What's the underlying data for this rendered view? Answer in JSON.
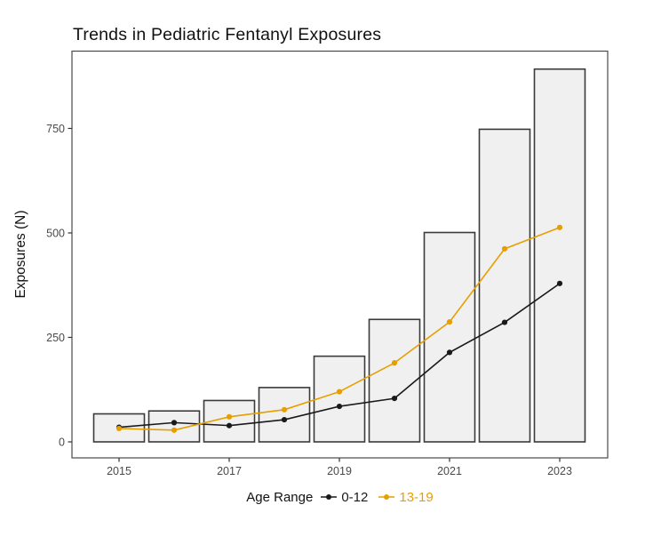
{
  "figure": {
    "title": "Trends in Pediatric Fentanyl Exposures",
    "y_axis_label": "Exposures (N)"
  },
  "legend": {
    "title": "Age Range",
    "entries": [
      {
        "label": "0-12",
        "color": "#1A1A1A"
      },
      {
        "label": "13-19",
        "color": "#E69F00"
      }
    ]
  },
  "chart_data": {
    "type": "bar",
    "subtype": "bars-with-line-overlay",
    "title": "Trends in Pediatric Fentanyl Exposures",
    "xlabel": "",
    "ylabel": "Exposures (N)",
    "categories": [
      2015,
      2016,
      2017,
      2018,
      2019,
      2020,
      2021,
      2022,
      2023
    ],
    "bars": {
      "values": [
        67,
        74,
        99,
        130,
        205,
        293,
        501,
        748,
        892
      ],
      "fill": "#F0F0F0",
      "stroke": "#3A3A3A"
    },
    "series": [
      {
        "name": "0-12",
        "color": "#1A1A1A",
        "values": [
          35,
          46,
          39,
          53,
          85,
          104,
          214,
          286,
          379
        ]
      },
      {
        "name": "13-19",
        "color": "#E69F00",
        "values": [
          32,
          28,
          60,
          77,
          120,
          189,
          287,
          462,
          513
        ]
      }
    ],
    "yticks": [
      0,
      250,
      500,
      750
    ],
    "xticks": [
      2015,
      2017,
      2019,
      2021,
      2023
    ],
    "ylim": [
      0,
      935
    ],
    "grid": false,
    "legend_position": "bottom",
    "legend_title": "Age Range"
  },
  "colors": {
    "background": "#FFFFFF",
    "panel_border": "#4A4A4A",
    "axis_tick": "#333333",
    "axis_text": "#4A4A4A",
    "title_text": "#111111"
  }
}
